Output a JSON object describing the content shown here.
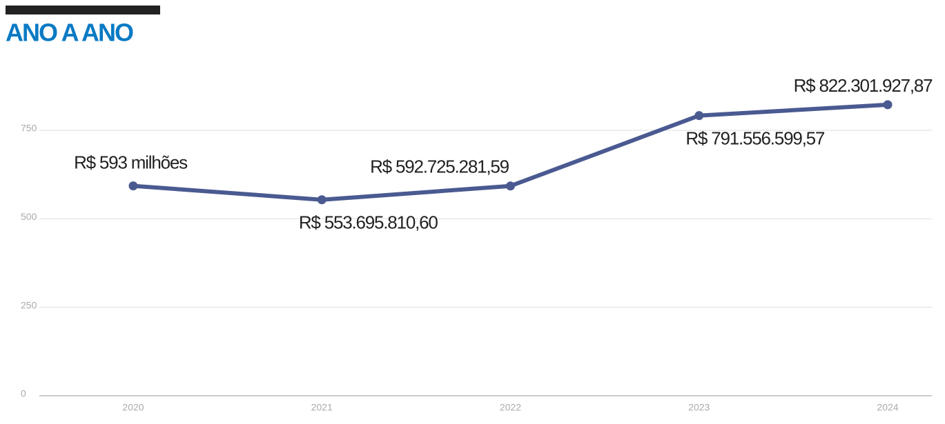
{
  "chart_data": {
    "type": "line",
    "title": "ANO A ANO",
    "categories": [
      "2020",
      "2021",
      "2022",
      "2023",
      "2024"
    ],
    "values": [
      593,
      553.6958106,
      592.72528159,
      791.55659957,
      822.30192787
    ],
    "value_labels": [
      "R$ 593 milhões",
      "R$ 553.695.810,60",
      "R$ 592.725.281,59",
      "R$ 791.556.599,57",
      "R$ 822.301.927,87"
    ],
    "color": "#4a5a91",
    "ylim": [
      0,
      900
    ],
    "yticks": [
      0,
      250,
      500,
      750
    ],
    "grid": true
  }
}
